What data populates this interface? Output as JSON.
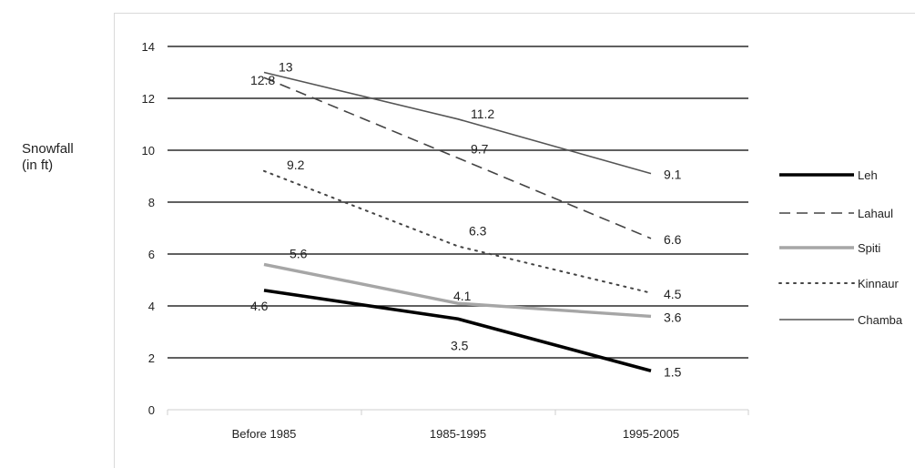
{
  "chart_data": {
    "type": "line",
    "title": "",
    "ylabel_lines": [
      "Snowfall",
      "(in ft)"
    ],
    "xlabel": "",
    "categories": [
      "Before 1985",
      "1985-1995",
      "1995-2005"
    ],
    "ylim": [
      0,
      14
    ],
    "yticks": [
      0,
      2,
      4,
      6,
      8,
      10,
      12,
      14
    ],
    "grid": true,
    "legend_position": "right",
    "series": [
      {
        "name": "Leh",
        "values": [
          4.6,
          3.5,
          1.5
        ],
        "labels": [
          "4.6",
          "3.5",
          "1.5"
        ],
        "color": "#000000",
        "style": "solid"
      },
      {
        "name": "Lahaul",
        "values": [
          12.8,
          9.7,
          6.6
        ],
        "labels": [
          "12.8",
          "9.7",
          "6.6"
        ],
        "color": "#444444",
        "style": "dashed"
      },
      {
        "name": "Spiti",
        "values": [
          5.6,
          4.1,
          3.6
        ],
        "labels": [
          "5.6",
          "4.1",
          "3.6"
        ],
        "color": "#a6a6a6",
        "style": "solid-thick"
      },
      {
        "name": "Kinnaur",
        "values": [
          9.2,
          6.3,
          4.5
        ],
        "labels": [
          "9.2",
          "6.3",
          "4.5"
        ],
        "color": "#444444",
        "style": "dotted"
      },
      {
        "name": "Chamba",
        "values": [
          13,
          11.2,
          9.1
        ],
        "labels": [
          "13",
          "11.2",
          "9.1"
        ],
        "color": "#555555",
        "style": "solid"
      }
    ]
  }
}
